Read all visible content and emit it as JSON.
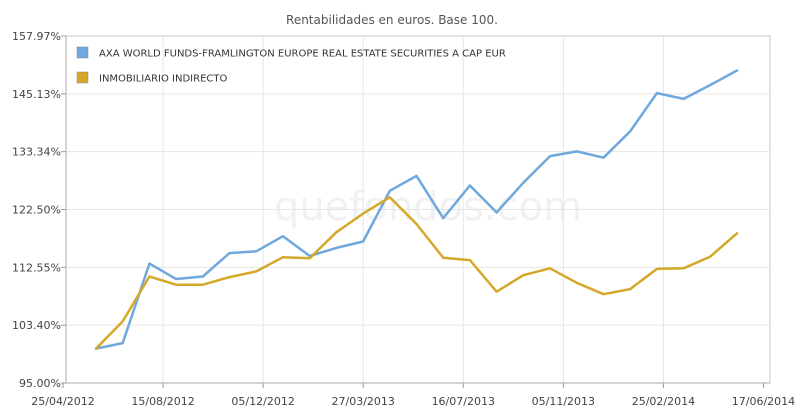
{
  "chart_data": {
    "type": "line",
    "title": "Rentabilidades en euros. Base 100.",
    "watermark": "quefondos.com",
    "xlabel": "",
    "ylabel": "",
    "y_ticks": [
      "95.00%",
      "103.40%",
      "112.55%",
      "122.50%",
      "133.34%",
      "145.13%",
      "157.97%"
    ],
    "x_ticks": [
      "25/04/2012",
      "15/08/2012",
      "05/12/2012",
      "27/03/2013",
      "16/07/2013",
      "05/11/2013",
      "25/02/2014",
      "17/06/2014"
    ],
    "legend": "top-left",
    "grid": true,
    "series": [
      {
        "name": "AXA WORLD FUNDS-FRAMLINGTON EUROPE REAL ESTATE SECURITIES A CAP EUR",
        "color": "#6fa8dc",
        "values": [
          100.0,
          100.8,
          113.2,
          110.7,
          111.1,
          115.0,
          115.3,
          117.9,
          114.5,
          115.9,
          117.0,
          126.0,
          128.8,
          121.0,
          127.0,
          122.0,
          127.5,
          132.5,
          133.4,
          132.2,
          137.5,
          145.3,
          144.1,
          147.1,
          150.3
        ]
      },
      {
        "name": "INMOBILIARIO INDIRECTO",
        "color": "#d4a829",
        "values": [
          100.0,
          104.0,
          111.1,
          109.8,
          109.8,
          111.0,
          111.9,
          114.3,
          114.1,
          118.6,
          121.8,
          124.8,
          120.0,
          114.2,
          113.8,
          108.7,
          111.3,
          112.4,
          110.1,
          108.3,
          109.1,
          112.3,
          112.4,
          114.4,
          118.4
        ]
      }
    ]
  }
}
